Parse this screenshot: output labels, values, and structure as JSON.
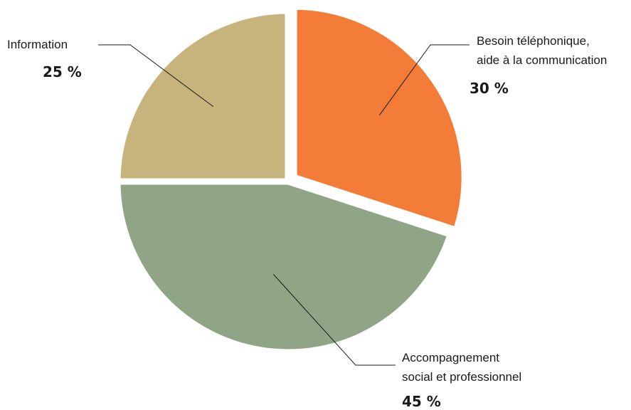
{
  "chart_data": {
    "type": "pie",
    "title": "",
    "start_angle_deg": 0,
    "direction": "clockwise",
    "slices": [
      {
        "label_lines": [
          "Besoin téléphonique,",
          "aide à la communication"
        ],
        "value": 30,
        "value_label": "30 %",
        "color": "#f27c38",
        "exploded": true
      },
      {
        "label_lines": [
          "Accompagnement",
          "social et professionnel"
        ],
        "value": 45,
        "value_label": "45 %",
        "color": "#8fa586",
        "exploded": false
      },
      {
        "label_lines": [
          "Information"
        ],
        "value": 25,
        "value_label": "25 %",
        "color": "#c6b47c",
        "exploded": false
      }
    ]
  }
}
